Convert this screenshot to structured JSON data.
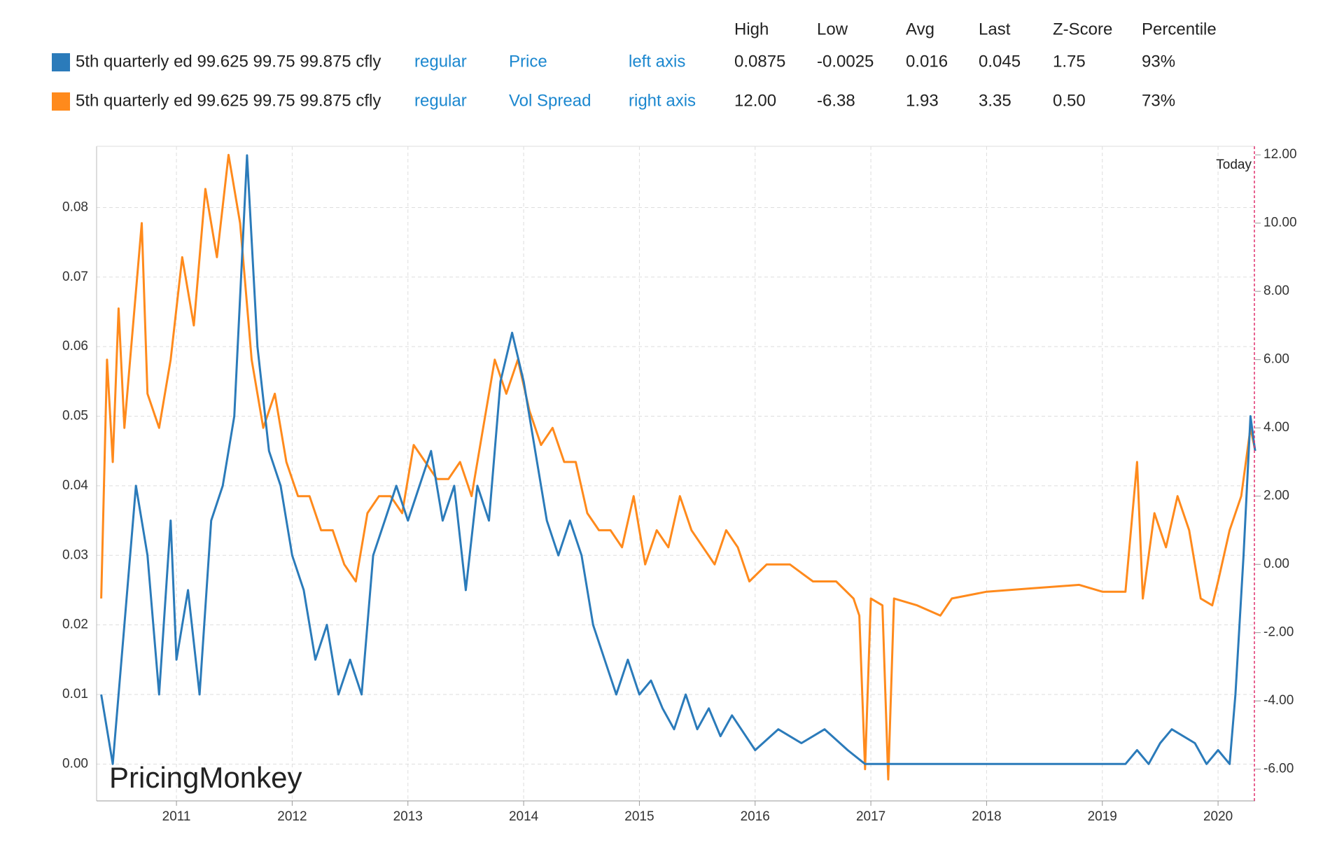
{
  "chart_data": {
    "type": "line",
    "stats_columns": [
      "High",
      "Low",
      "Avg",
      "Last",
      "Z-Score",
      "Percentile"
    ],
    "xlim": [
      2010.31,
      2020.32
    ],
    "xticks": [
      2011,
      2012,
      2013,
      2014,
      2015,
      2016,
      2017,
      2018,
      2019,
      2020
    ],
    "ylim": [
      -0.0053,
      0.0888
    ],
    "yticks": [
      {
        "value": 0,
        "label": "0.00"
      },
      {
        "value": 0.01,
        "label": "0.01"
      },
      {
        "value": 0.02,
        "label": "0.02"
      },
      {
        "value": 0.03,
        "label": "0.03"
      },
      {
        "value": 0.04,
        "label": "0.04"
      },
      {
        "value": 0.05,
        "label": "0.05"
      },
      {
        "value": 0.06,
        "label": "0.06"
      },
      {
        "value": 0.07,
        "label": "0.07"
      },
      {
        "value": 0.08,
        "label": "0.08"
      }
    ],
    "y2lim": [
      -6.93,
      12.25
    ],
    "y2ticks": [
      {
        "value": -6,
        "label": "-6.00"
      },
      {
        "value": -4,
        "label": "-4.00"
      },
      {
        "value": -2,
        "label": "-2.00"
      },
      {
        "value": 0,
        "label": "0.00"
      },
      {
        "value": 2,
        "label": "2.00"
      },
      {
        "value": 4,
        "label": "4.00"
      },
      {
        "value": 6,
        "label": "6.00"
      },
      {
        "value": 8,
        "label": "8.00"
      },
      {
        "value": 10,
        "label": "10.00"
      },
      {
        "value": 12,
        "label": "12.00"
      }
    ],
    "grid": true,
    "annotations": [
      "Today",
      "PricingMonkey"
    ],
    "series": [
      {
        "name": "5th quarterly ed 99.625 99.75 99.875 cfly",
        "style": "regular",
        "field": "Price",
        "axis_label": "left axis",
        "stats": [
          "0.0875",
          "-0.0025",
          "0.016",
          "0.045",
          "1.75",
          "93%"
        ],
        "color": "#2b7bba",
        "axis": "y",
        "x": [
          2010.35,
          2010.45,
          2010.55,
          2010.65,
          2010.75,
          2010.85,
          2010.95,
          2011.0,
          2011.1,
          2011.2,
          2011.3,
          2011.4,
          2011.5,
          2011.61,
          2011.7,
          2011.8,
          2011.9,
          2012.0,
          2012.1,
          2012.2,
          2012.3,
          2012.4,
          2012.5,
          2012.6,
          2012.7,
          2012.8,
          2012.9,
          2013.0,
          2013.1,
          2013.2,
          2013.3,
          2013.4,
          2013.5,
          2013.6,
          2013.7,
          2013.8,
          2013.9,
          2014.0,
          2014.1,
          2014.2,
          2014.3,
          2014.4,
          2014.5,
          2014.6,
          2014.7,
          2014.8,
          2014.9,
          2015.0,
          2015.1,
          2015.2,
          2015.3,
          2015.4,
          2015.5,
          2015.6,
          2015.7,
          2015.8,
          2016.0,
          2016.2,
          2016.4,
          2016.6,
          2016.8,
          2016.95,
          2017.2,
          2017.4,
          2018.0,
          2019.0,
          2019.2,
          2019.3,
          2019.4,
          2019.5,
          2019.6,
          2019.8,
          2019.9,
          2020.0,
          2020.1,
          2020.15,
          2020.22,
          2020.28,
          2020.32
        ],
        "values": [
          0.01,
          0.0,
          0.02,
          0.04,
          0.03,
          0.01,
          0.035,
          0.015,
          0.025,
          0.01,
          0.035,
          0.04,
          0.05,
          0.0875,
          0.06,
          0.045,
          0.04,
          0.03,
          0.025,
          0.015,
          0.02,
          0.01,
          0.015,
          0.01,
          0.03,
          0.035,
          0.04,
          0.035,
          0.04,
          0.045,
          0.035,
          0.04,
          0.025,
          0.04,
          0.035,
          0.055,
          0.062,
          0.055,
          0.045,
          0.035,
          0.03,
          0.035,
          0.03,
          0.02,
          0.015,
          0.01,
          0.015,
          0.01,
          0.012,
          0.008,
          0.005,
          0.01,
          0.005,
          0.008,
          0.004,
          0.007,
          0.002,
          0.005,
          0.003,
          0.005,
          0.002,
          0.0,
          0.0,
          0.0,
          0.0,
          0.0,
          0.0,
          0.002,
          0.0,
          0.003,
          0.005,
          0.003,
          0.0,
          0.002,
          0.0,
          0.01,
          0.03,
          0.05,
          0.045
        ]
      },
      {
        "name": "5th quarterly ed 99.625 99.75 99.875 cfly",
        "style": "regular",
        "field": "Vol Spread",
        "axis_label": "right axis",
        "stats": [
          "12.00",
          "-6.38",
          "1.93",
          "3.35",
          "0.50",
          "73%"
        ],
        "color": "#ff8a1c",
        "axis": "y2",
        "x": [
          2010.35,
          2010.4,
          2010.45,
          2010.5,
          2010.55,
          2010.6,
          2010.65,
          2010.7,
          2010.75,
          2010.85,
          2010.95,
          2011.05,
          2011.15,
          2011.25,
          2011.35,
          2011.45,
          2011.55,
          2011.65,
          2011.75,
          2011.85,
          2011.95,
          2012.05,
          2012.15,
          2012.25,
          2012.35,
          2012.45,
          2012.55,
          2012.65,
          2012.75,
          2012.85,
          2012.95,
          2013.05,
          2013.15,
          2013.25,
          2013.35,
          2013.45,
          2013.55,
          2013.65,
          2013.75,
          2013.85,
          2013.95,
          2014.05,
          2014.15,
          2014.25,
          2014.35,
          2014.45,
          2014.55,
          2014.65,
          2014.75,
          2014.85,
          2014.95,
          2015.05,
          2015.15,
          2015.25,
          2015.35,
          2015.45,
          2015.55,
          2015.65,
          2015.75,
          2015.85,
          2015.95,
          2016.1,
          2016.3,
          2016.5,
          2016.7,
          2016.85,
          2016.9,
          2016.95,
          2017.0,
          2017.1,
          2017.15,
          2017.2,
          2017.4,
          2017.6,
          2017.7,
          2018.0,
          2018.4,
          2018.8,
          2019.0,
          2019.2,
          2019.3,
          2019.35,
          2019.45,
          2019.55,
          2019.65,
          2019.75,
          2019.85,
          2019.95,
          2020.0,
          2020.1,
          2020.2,
          2020.28,
          2020.32
        ],
        "values": [
          -1.0,
          6.0,
          3.0,
          7.5,
          4.0,
          6.0,
          8.0,
          10.0,
          5.0,
          4.0,
          6.0,
          9.0,
          7.0,
          11.0,
          9.0,
          12.0,
          10.0,
          6.0,
          4.0,
          5.0,
          3.0,
          2.0,
          2.0,
          1.0,
          1.0,
          0.0,
          -0.5,
          1.5,
          2.0,
          2.0,
          1.5,
          3.5,
          3.0,
          2.5,
          2.5,
          3.0,
          2.0,
          4.0,
          6.0,
          5.0,
          6.0,
          4.5,
          3.5,
          4.0,
          3.0,
          3.0,
          1.5,
          1.0,
          1.0,
          0.5,
          2.0,
          0.0,
          1.0,
          0.5,
          2.0,
          1.0,
          0.5,
          0.0,
          1.0,
          0.5,
          -0.5,
          0.0,
          0.0,
          -0.5,
          -0.5,
          -1.0,
          -1.5,
          -6.0,
          -1.0,
          -1.2,
          -6.3,
          -1.0,
          -1.2,
          -1.5,
          -1.0,
          -0.8,
          -0.7,
          -0.6,
          -0.8,
          -0.8,
          3.0,
          -1.0,
          1.5,
          0.5,
          2.0,
          1.0,
          -1.0,
          -1.2,
          -0.5,
          1.0,
          2.0,
          4.0,
          3.35
        ]
      }
    ]
  }
}
